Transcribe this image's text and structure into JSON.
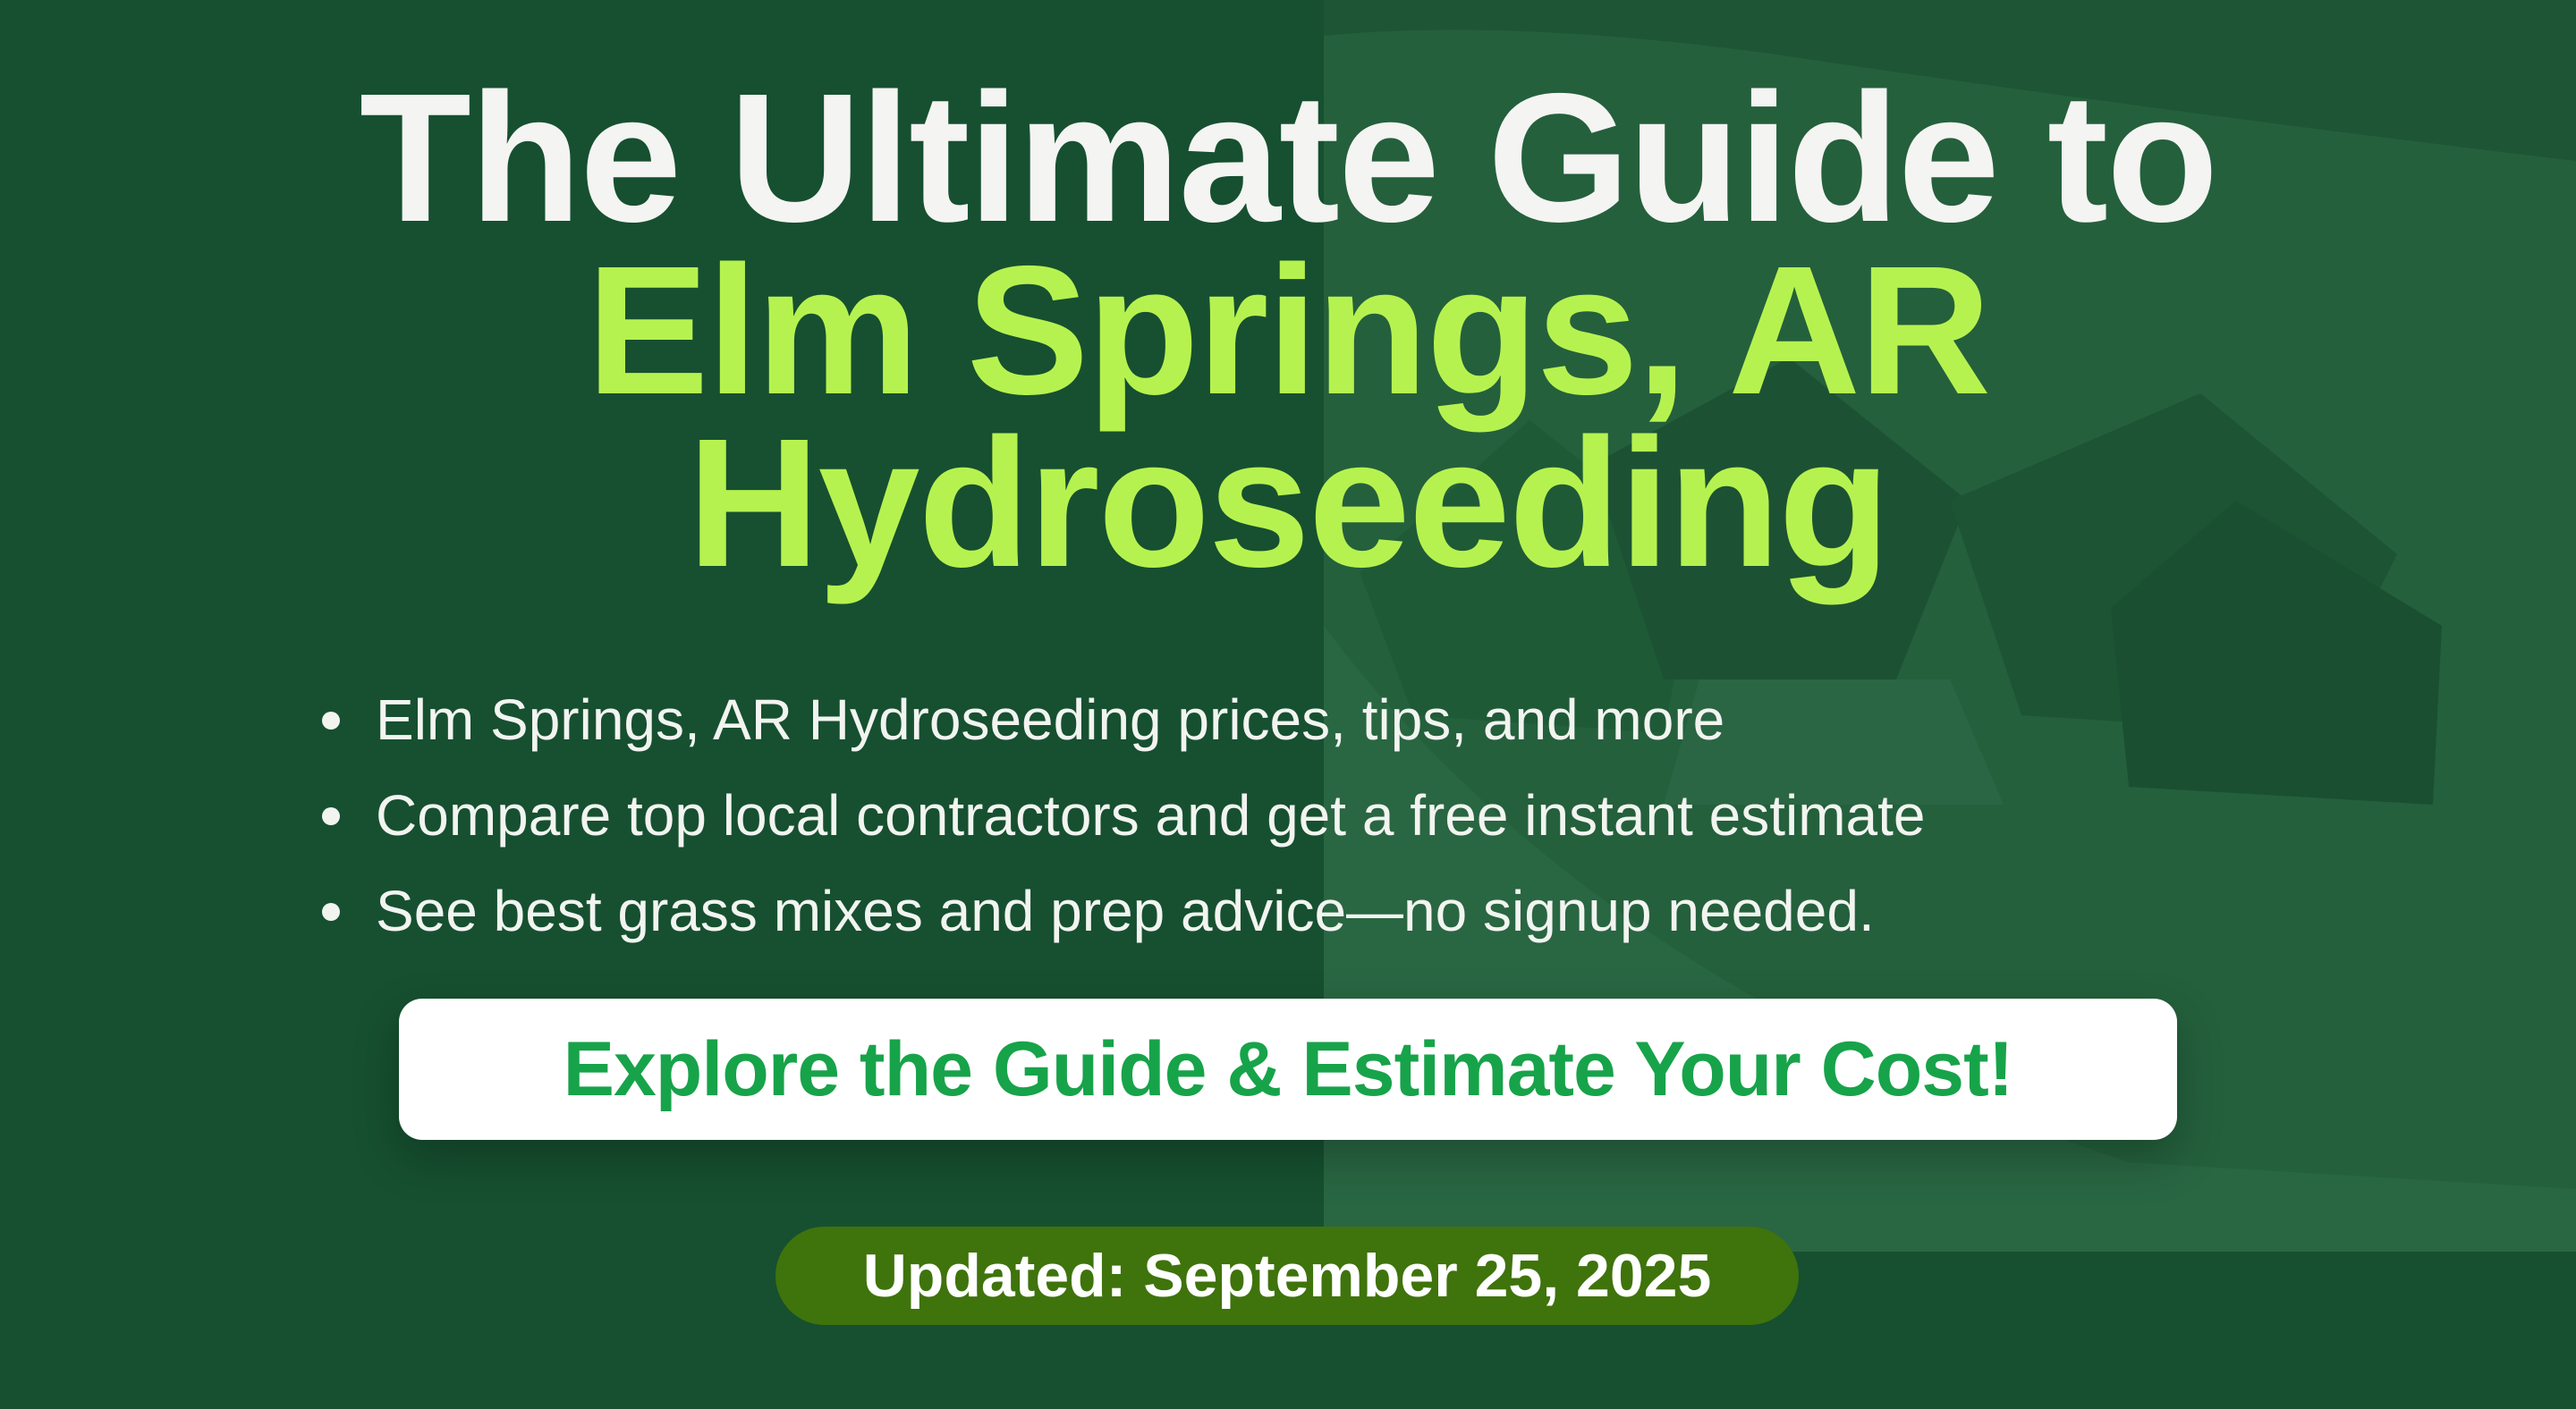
{
  "title": {
    "line1": "The Ultimate Guide to",
    "line2": "Elm Springs, AR",
    "line3": "Hydroseeding"
  },
  "bullets": [
    "Elm Springs, AR Hydroseeding prices, tips, and more",
    "Compare top local contractors and get a free instant estimate",
    "See best grass mixes and prep advice—no signup needed."
  ],
  "cta": {
    "label": "Explore the Guide & Estimate Your Cost!"
  },
  "updated": {
    "label": "Updated: September 25, 2025"
  },
  "colors": {
    "background": "#165030",
    "title_white": "#f4f4f2",
    "title_accent": "#b6f24f",
    "cta_text": "#17a34a",
    "badge_bg": "#3f730c"
  },
  "background_image": {
    "subject": "aerial-house-on-lawn"
  }
}
